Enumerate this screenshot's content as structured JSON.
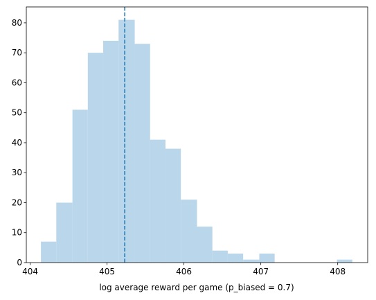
{
  "chart_data": {
    "type": "histogram",
    "x_label": "log average reward per game (p_biased = 0.7)",
    "bins": [
      404.14,
      404.34,
      404.55,
      404.75,
      404.95,
      405.15,
      405.36,
      405.56,
      405.76,
      405.96,
      406.17,
      406.37,
      406.57,
      406.77,
      406.98,
      407.18,
      407.38,
      407.58,
      407.79,
      407.99,
      408.19
    ],
    "values": [
      7,
      20,
      51,
      70,
      74,
      81,
      73,
      41,
      38,
      21,
      12,
      4,
      3,
      1,
      3,
      0,
      0,
      0,
      0,
      1
    ],
    "color": "#bad6ea",
    "vline": 405.23,
    "vline_color": "#1f77b4",
    "xlim": [
      403.95,
      408.39
    ],
    "xticks": [
      404,
      405,
      406,
      407,
      408
    ],
    "ylim": [
      0,
      85.3
    ],
    "yticks": [
      0,
      10,
      20,
      30,
      40,
      50,
      60,
      70,
      80
    ]
  }
}
